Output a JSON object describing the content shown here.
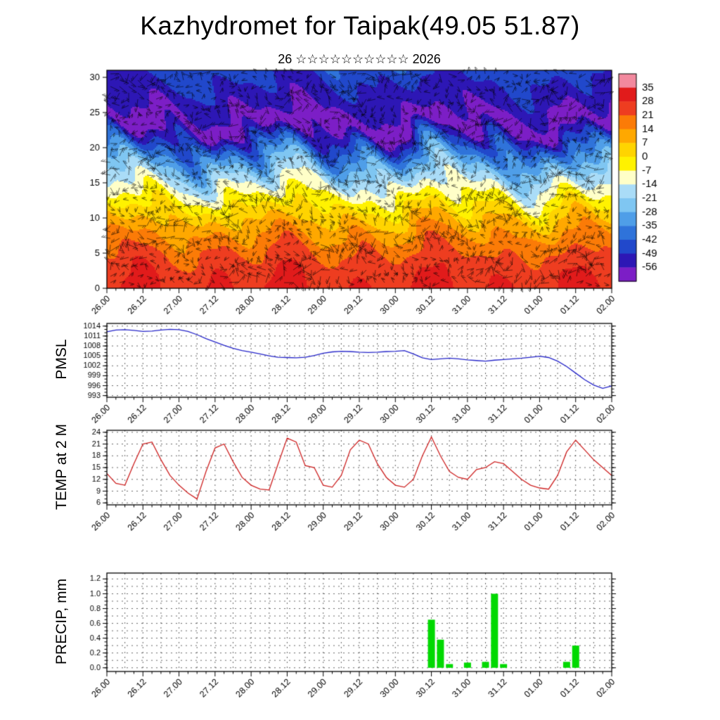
{
  "title": "Kazhydromet for Taipak(49.05 51.87)",
  "subtitle": "26 ☆☆☆☆☆☆☆☆☆☆ 2026",
  "x_axis": {
    "tick_labels": [
      "26.00",
      "26.12",
      "27.00",
      "27.12",
      "28.00",
      "28.12",
      "29.00",
      "29.12",
      "30.00",
      "30.12",
      "31.00",
      "31.12",
      "01.00",
      "01.12",
      "02.00"
    ],
    "minor_steps_per_label": 4,
    "n_points": 57
  },
  "colorbar": {
    "position": "right",
    "tick_labels": [
      "35",
      "28",
      "21",
      "14",
      "7",
      "0",
      "-7",
      "-14",
      "-21",
      "-28",
      "-35",
      "-42",
      "-49",
      "-56"
    ],
    "band_colors_top_to_bottom": [
      "#f2899e",
      "#e11b1b",
      "#ee3d20",
      "#fb7b07",
      "#ffa800",
      "#ffd400",
      "#fff200",
      "#ffffc8",
      "#aadcf7",
      "#7fc6f2",
      "#4f9ee8",
      "#2f73da",
      "#2148cb",
      "#2d17b5",
      "#7c1ec6"
    ]
  },
  "chart_data": [
    {
      "id": "cross_section",
      "type": "heatmap",
      "description": "time-height temperature cross-section with wind barbs, warm (red ~28C) near surface, cold (purple < -56C) near level 23, slight warming above",
      "ylim": [
        0,
        31
      ],
      "yticks": [
        0,
        5,
        10,
        15,
        20,
        25,
        30
      ],
      "wind_barbs": true,
      "model": {
        "surface_base": 28,
        "surface_diurnal_amp": 3.2,
        "surface_slow_amp": 1.6,
        "tropopause_level": 23,
        "min_temp": -60,
        "lapse_exponent": 1.68,
        "upper_lapse_per_level": 1.7,
        "wave_amp": 1.2
      }
    },
    {
      "id": "pmsl",
      "type": "line",
      "ylabel": "PMSL",
      "color": "#2323c8",
      "ylim": [
        992.5,
        1014.8
      ],
      "yticks": [
        993,
        996,
        999,
        1002,
        1005,
        1008,
        1011,
        1014
      ],
      "minor_tick_step": 1,
      "values": [
        1012.3,
        1012.8,
        1012.9,
        1012.7,
        1012.4,
        1012.5,
        1012.8,
        1013.0,
        1012.9,
        1012.4,
        1011.4,
        1010.2,
        1009.2,
        1008.2,
        1007.3,
        1006.6,
        1006.1,
        1005.6,
        1005.0,
        1004.6,
        1004.5,
        1004.4,
        1004.6,
        1005.1,
        1005.8,
        1006.2,
        1006.4,
        1006.3,
        1006.1,
        1006.0,
        1006.1,
        1006.3,
        1006.4,
        1006.6,
        1005.6,
        1004.4,
        1003.9,
        1004.1,
        1004.3,
        1004.1,
        1003.8,
        1003.6,
        1003.4,
        1003.7,
        1003.9,
        1004.1,
        1004.3,
        1004.6,
        1004.9,
        1004.5,
        1003.4,
        1001.8,
        999.8,
        997.8,
        996.2,
        995.2,
        995.9
      ]
    },
    {
      "id": "temp2m",
      "type": "line",
      "ylabel": "TEMP at 2 M",
      "color": "#cd2121",
      "ylim": [
        5.5,
        24.5
      ],
      "yticks": [
        6,
        9,
        12,
        15,
        18,
        21,
        24
      ],
      "minor_tick_step": 1,
      "values": [
        13.5,
        11,
        10.5,
        16,
        21,
        21.5,
        17,
        13,
        10.5,
        8.5,
        7,
        14,
        20,
        21,
        16.5,
        12.5,
        10.5,
        9.5,
        9.3,
        16,
        22.5,
        21.5,
        15.5,
        15,
        10.5,
        10,
        13,
        19.5,
        22,
        21,
        16,
        12.5,
        10.5,
        10,
        12,
        18,
        22.8,
        18,
        14,
        12.5,
        12,
        14.5,
        15,
        16.5,
        16,
        14,
        12,
        10.5,
        9.8,
        9.5,
        13,
        19,
        22,
        19.5,
        17,
        15,
        13
      ]
    },
    {
      "id": "precip",
      "type": "bar",
      "ylabel": "PRECIP, mm",
      "color": "#00d900",
      "ylim": [
        -0.05,
        1.28
      ],
      "yticks": [
        0.0,
        0.2,
        0.4,
        0.6,
        0.8,
        1.0,
        1.2
      ],
      "minor_tick_step": 0.05,
      "grid_row_step": 0.1,
      "values": [
        0,
        0,
        0,
        0,
        0,
        0,
        0,
        0,
        0,
        0,
        0,
        0,
        0,
        0,
        0,
        0,
        0,
        0,
        0,
        0,
        0,
        0,
        0,
        0,
        0,
        0,
        0,
        0,
        0,
        0,
        0,
        0,
        0,
        0,
        0,
        0,
        0.65,
        0.38,
        0.05,
        0,
        0.07,
        0,
        0.08,
        1.0,
        0.05,
        0,
        0,
        0,
        0,
        0,
        0,
        0.08,
        0.3,
        0,
        0,
        0,
        0
      ]
    }
  ]
}
